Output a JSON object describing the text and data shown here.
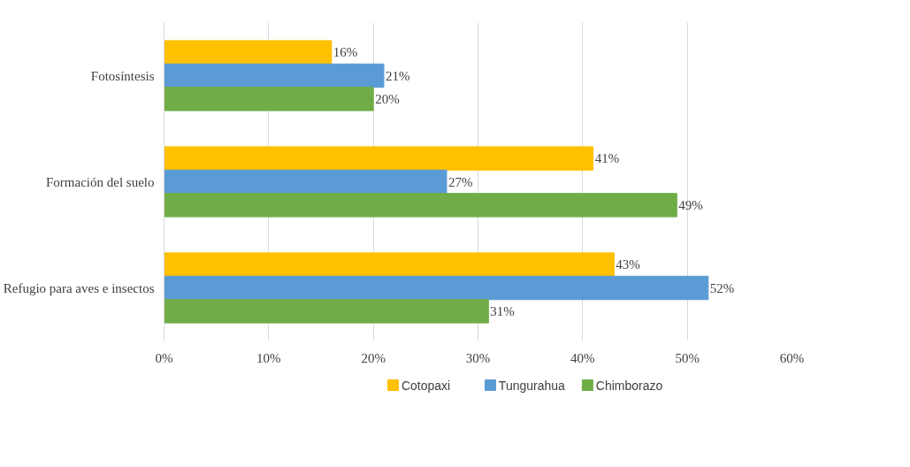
{
  "chart_data": {
    "type": "bar",
    "orientation": "horizontal",
    "categories": [
      "Fotosíntesis",
      "Formación del suelo",
      "Refugio para aves e insectos"
    ],
    "series": [
      {
        "name": "Cotopaxi",
        "color": "#ffc000",
        "values": [
          16,
          41,
          43
        ],
        "value_labels": [
          "16%",
          "41%",
          "43%"
        ]
      },
      {
        "name": "Tungurahua",
        "color": "#5b9bd5",
        "values": [
          21,
          27,
          52
        ],
        "value_labels": [
          "21%",
          "27%",
          "52%"
        ]
      },
      {
        "name": "Chimborazo",
        "color": "#70ad47",
        "values": [
          20,
          49,
          31
        ],
        "value_labels": [
          "20%",
          "49%",
          "31%"
        ]
      }
    ],
    "xlim": [
      0,
      60
    ],
    "xticks": [
      {
        "value": 0,
        "label": "0%"
      },
      {
        "value": 10,
        "label": "10%"
      },
      {
        "value": 20,
        "label": "20%"
      },
      {
        "value": 30,
        "label": "30%"
      },
      {
        "value": 40,
        "label": "40%"
      },
      {
        "value": 50,
        "label": "50%"
      },
      {
        "value": 60,
        "label": "60%"
      }
    ],
    "grid": "x",
    "legend": "bottom"
  }
}
